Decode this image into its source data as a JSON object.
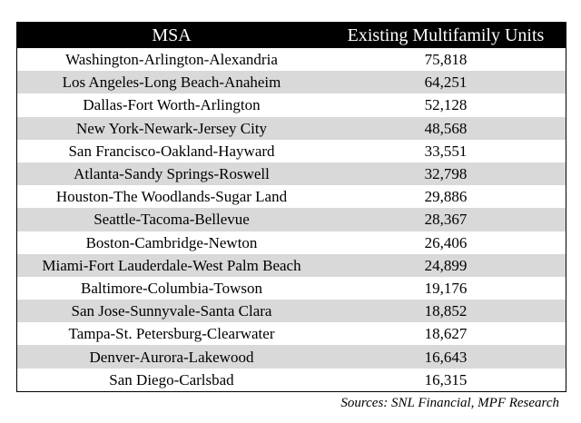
{
  "chart_data": {
    "type": "table",
    "columns": [
      "MSA",
      "Existing Multifamily Units"
    ],
    "rows": [
      {
        "msa": "Washington-Arlington-Alexandria",
        "units": "75,818"
      },
      {
        "msa": "Los Angeles-Long Beach-Anaheim",
        "units": "64,251"
      },
      {
        "msa": "Dallas-Fort Worth-Arlington",
        "units": "52,128"
      },
      {
        "msa": "New York-Newark-Jersey City",
        "units": "48,568"
      },
      {
        "msa": "San Francisco-Oakland-Hayward",
        "units": "33,551"
      },
      {
        "msa": "Atlanta-Sandy Springs-Roswell",
        "units": "32,798"
      },
      {
        "msa": "Houston-The Woodlands-Sugar Land",
        "units": "29,886"
      },
      {
        "msa": "Seattle-Tacoma-Bellevue",
        "units": "28,367"
      },
      {
        "msa": "Boston-Cambridge-Newton",
        "units": "26,406"
      },
      {
        "msa": "Miami-Fort Lauderdale-West Palm Beach",
        "units": "24,899"
      },
      {
        "msa": "Baltimore-Columbia-Towson",
        "units": "19,176"
      },
      {
        "msa": "San Jose-Sunnyvale-Santa Clara",
        "units": "18,852"
      },
      {
        "msa": "Tampa-St. Petersburg-Clearwater",
        "units": "18,627"
      },
      {
        "msa": "Denver-Aurora-Lakewood",
        "units": "16,643"
      },
      {
        "msa": "San Diego-Carlsbad",
        "units": "16,315"
      }
    ],
    "header_color": "#000000",
    "header_text_color": "#ffffff",
    "stripe_color": "#d9d9d9"
  },
  "source": "Sources: SNL Financial,  MPF Research"
}
